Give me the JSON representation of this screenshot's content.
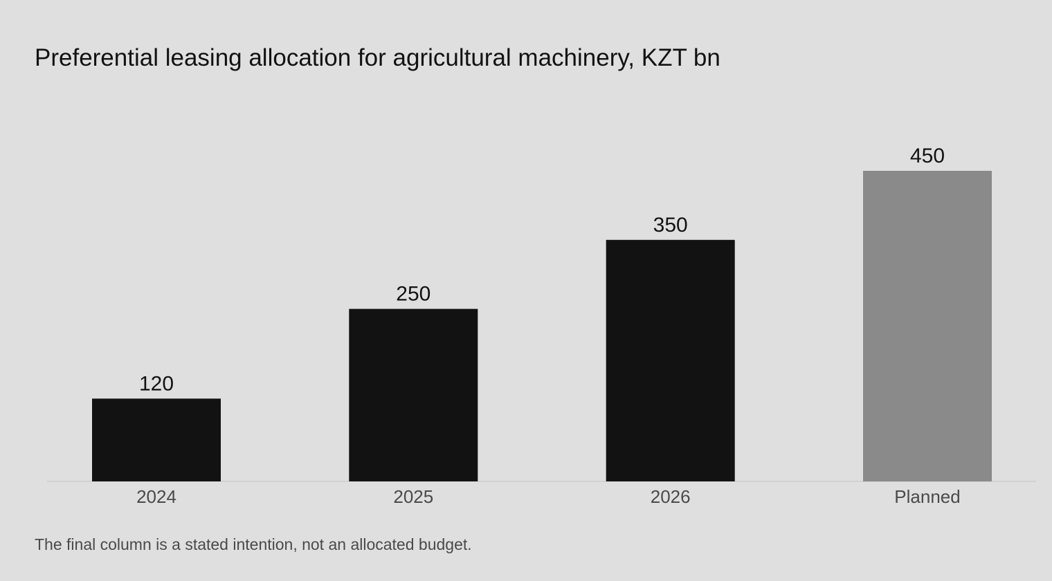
{
  "title": "Preferential leasing allocation for agricultural machinery, KZT bn",
  "note": "The final column is a stated intention, not an allocated budget.",
  "colors": {
    "background": "#dfdfdf",
    "bar_actual": "#121212",
    "bar_planned": "#8a8a8a",
    "axis_line": "#c4c4c4",
    "value_label": "#121212",
    "tick_label": "#4a4a4a"
  },
  "chart_data": {
    "type": "bar",
    "title": "Preferential leasing allocation for agricultural machinery, KZT bn",
    "categories": [
      "2024",
      "2025",
      "2026",
      "Planned"
    ],
    "values": [
      120,
      250,
      350,
      450
    ],
    "value_labels": [
      "120",
      "250",
      "350",
      "450"
    ],
    "status": [
      "actual",
      "actual",
      "actual",
      "planned"
    ],
    "ylim": [
      0,
      450
    ],
    "xlabel": "",
    "ylabel": "",
    "grid": false,
    "legend": "none"
  }
}
